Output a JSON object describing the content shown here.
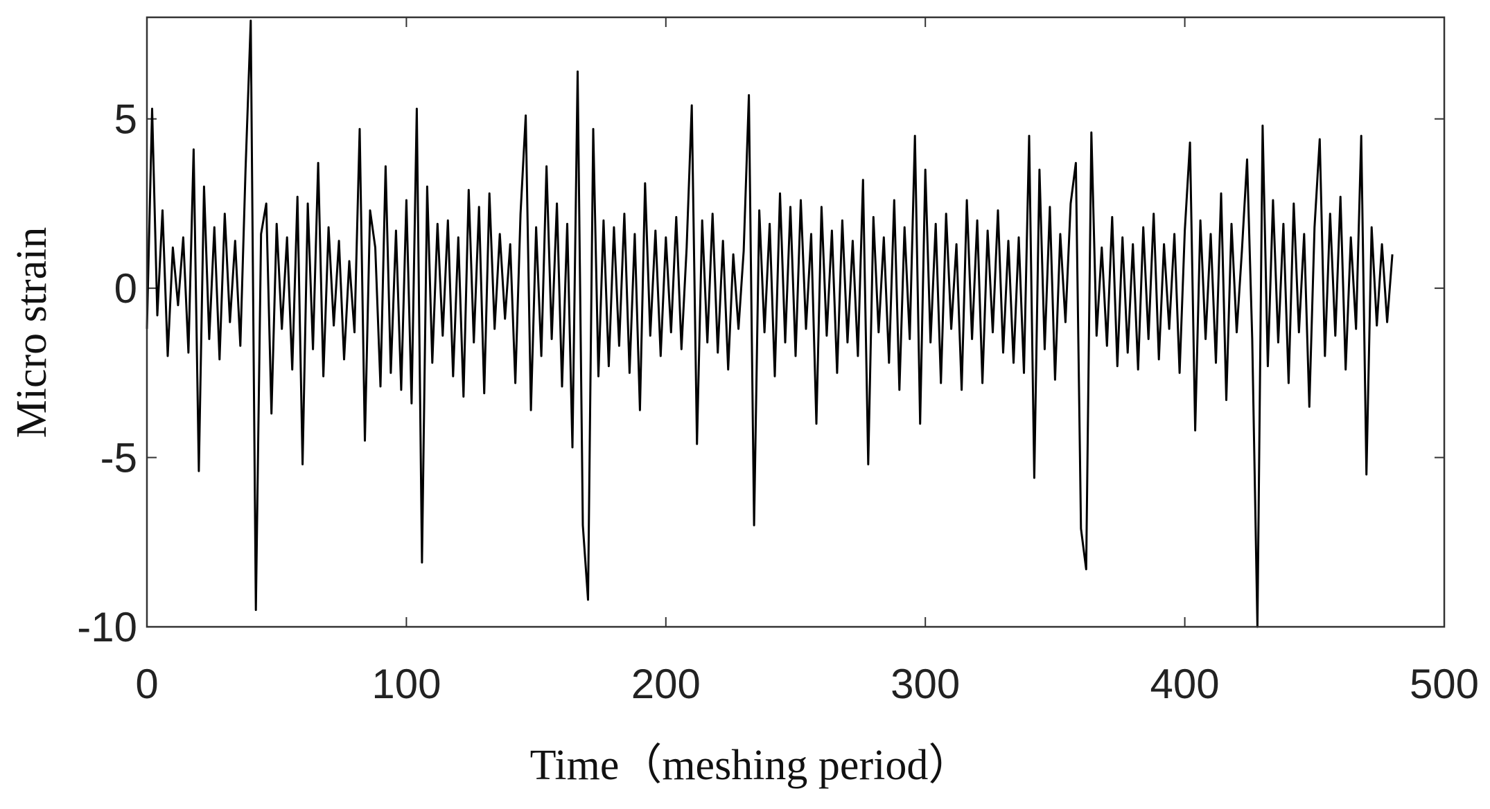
{
  "chart_data": {
    "type": "line",
    "xlabel": "Time（meshing period）",
    "ylabel": "Micro strain",
    "xlim": [
      0,
      500
    ],
    "ylim": [
      -10,
      8
    ],
    "xticks": [
      0,
      100,
      200,
      300,
      400,
      500
    ],
    "yticks": [
      -10,
      -5,
      0,
      5
    ],
    "color": "#000000",
    "x": [
      0,
      2,
      4,
      6,
      8,
      10,
      12,
      14,
      16,
      18,
      20,
      22,
      24,
      26,
      28,
      30,
      32,
      34,
      36,
      38,
      40,
      42,
      44,
      46,
      48,
      50,
      52,
      54,
      56,
      58,
      60,
      62,
      64,
      66,
      68,
      70,
      72,
      74,
      76,
      78,
      80,
      82,
      84,
      86,
      88,
      90,
      92,
      94,
      96,
      98,
      100,
      102,
      104,
      106,
      108,
      110,
      112,
      114,
      116,
      118,
      120,
      122,
      124,
      126,
      128,
      130,
      132,
      134,
      136,
      138,
      140,
      142,
      144,
      146,
      148,
      150,
      152,
      154,
      156,
      158,
      160,
      162,
      164,
      166,
      168,
      170,
      172,
      174,
      176,
      178,
      180,
      182,
      184,
      186,
      188,
      190,
      192,
      194,
      196,
      198,
      200,
      202,
      204,
      206,
      208,
      210,
      212,
      214,
      216,
      218,
      220,
      222,
      224,
      226,
      228,
      230,
      232,
      234,
      236,
      238,
      240,
      242,
      244,
      246,
      248,
      250,
      252,
      254,
      256,
      258,
      260,
      262,
      264,
      266,
      268,
      270,
      272,
      274,
      276,
      278,
      280,
      282,
      284,
      286,
      288,
      290,
      292,
      294,
      296,
      298,
      300,
      302,
      304,
      306,
      308,
      310,
      312,
      314,
      316,
      318,
      320,
      322,
      324,
      326,
      328,
      330,
      332,
      334,
      336,
      338,
      340,
      342,
      344,
      346,
      348,
      350,
      352,
      354,
      356,
      358,
      360,
      362,
      364,
      366,
      368,
      370,
      372,
      374,
      376,
      378,
      380,
      382,
      384,
      386,
      388,
      390,
      392,
      394,
      396,
      398,
      400,
      402,
      404,
      406,
      408,
      410,
      412,
      414,
      416,
      418,
      420,
      422,
      424,
      426,
      428,
      430,
      432,
      434,
      436,
      438,
      440,
      442,
      444,
      446,
      448,
      450,
      452,
      454,
      456,
      458,
      460,
      462,
      464,
      466,
      468,
      470,
      472,
      474,
      476,
      478,
      480
    ],
    "values": [
      -1.2,
      5.3,
      -0.8,
      2.3,
      -2.0,
      1.2,
      -0.5,
      1.5,
      -1.9,
      4.1,
      -5.4,
      3.0,
      -1.5,
      1.8,
      -2.1,
      2.2,
      -1.0,
      1.4,
      -1.7,
      3.5,
      7.9,
      -9.5,
      1.6,
      2.5,
      -3.7,
      1.9,
      -1.2,
      1.5,
      -2.4,
      2.7,
      -5.2,
      2.5,
      -1.8,
      3.7,
      -2.6,
      1.8,
      -1.1,
      1.4,
      -2.1,
      0.8,
      -1.3,
      4.7,
      -4.5,
      2.3,
      1.2,
      -2.9,
      3.6,
      -2.5,
      1.7,
      -3.0,
      2.6,
      -3.4,
      5.3,
      -8.1,
      3.0,
      -2.2,
      1.9,
      -1.4,
      2.0,
      -2.6,
      1.5,
      -3.2,
      2.9,
      -1.6,
      2.4,
      -3.1,
      2.8,
      -1.2,
      1.6,
      -0.9,
      1.3,
      -2.8,
      2.2,
      5.1,
      -3.6,
      1.8,
      -2.0,
      3.6,
      -1.5,
      2.5,
      -2.9,
      1.9,
      -4.7,
      6.4,
      -7.0,
      -9.2,
      4.7,
      -2.6,
      2.0,
      -2.3,
      1.8,
      -1.7,
      2.2,
      -2.5,
      1.6,
      -3.6,
      3.1,
      -1.4,
      1.7,
      -2.0,
      1.5,
      -1.3,
      2.1,
      -1.8,
      1.2,
      5.4,
      -4.6,
      2.0,
      -1.6,
      2.2,
      -1.9,
      1.4,
      -2.4,
      1.0,
      -1.2,
      1.1,
      5.7,
      -7.0,
      2.3,
      -1.3,
      1.9,
      -2.6,
      2.8,
      -1.6,
      2.4,
      -2.0,
      2.6,
      -1.2,
      1.6,
      -4.0,
      2.4,
      -1.4,
      1.7,
      -2.5,
      2.0,
      -1.6,
      1.4,
      -2.0,
      3.2,
      -5.2,
      2.1,
      -1.3,
      1.5,
      -2.2,
      2.6,
      -3.0,
      1.8,
      -1.5,
      4.5,
      -4.0,
      3.5,
      -1.6,
      1.9,
      -2.8,
      2.2,
      -1.2,
      1.3,
      -3.0,
      2.6,
      -1.5,
      2.0,
      -2.8,
      1.7,
      -1.3,
      2.3,
      -1.9,
      1.4,
      -2.2,
      1.5,
      -2.5,
      4.5,
      -5.6,
      3.5,
      -1.8,
      2.4,
      -2.7,
      1.6,
      -1.0,
      2.5,
      3.7,
      -7.1,
      -8.3,
      4.6,
      -1.4,
      1.2,
      -1.7,
      2.1,
      -2.3,
      1.5,
      -1.9,
      1.3,
      -2.4,
      1.8,
      -1.5,
      2.2,
      -2.1,
      1.3,
      -1.2,
      1.6,
      -2.5,
      1.7,
      4.3,
      -4.2,
      2.0,
      -1.5,
      1.6,
      -2.2,
      2.8,
      -3.3,
      1.9,
      -1.3,
      1.1,
      3.8,
      -1.5,
      -10,
      4.8,
      -2.3,
      2.6,
      -1.6,
      1.9,
      -2.8,
      2.5,
      -1.3,
      1.6,
      -3.5,
      1.8,
      4.4,
      -2.0,
      2.2,
      -1.4,
      2.7,
      -2.4,
      1.5,
      -1.2,
      4.5,
      -5.5,
      1.8,
      -1.1,
      1.3,
      -1.0,
      1.0
    ]
  }
}
